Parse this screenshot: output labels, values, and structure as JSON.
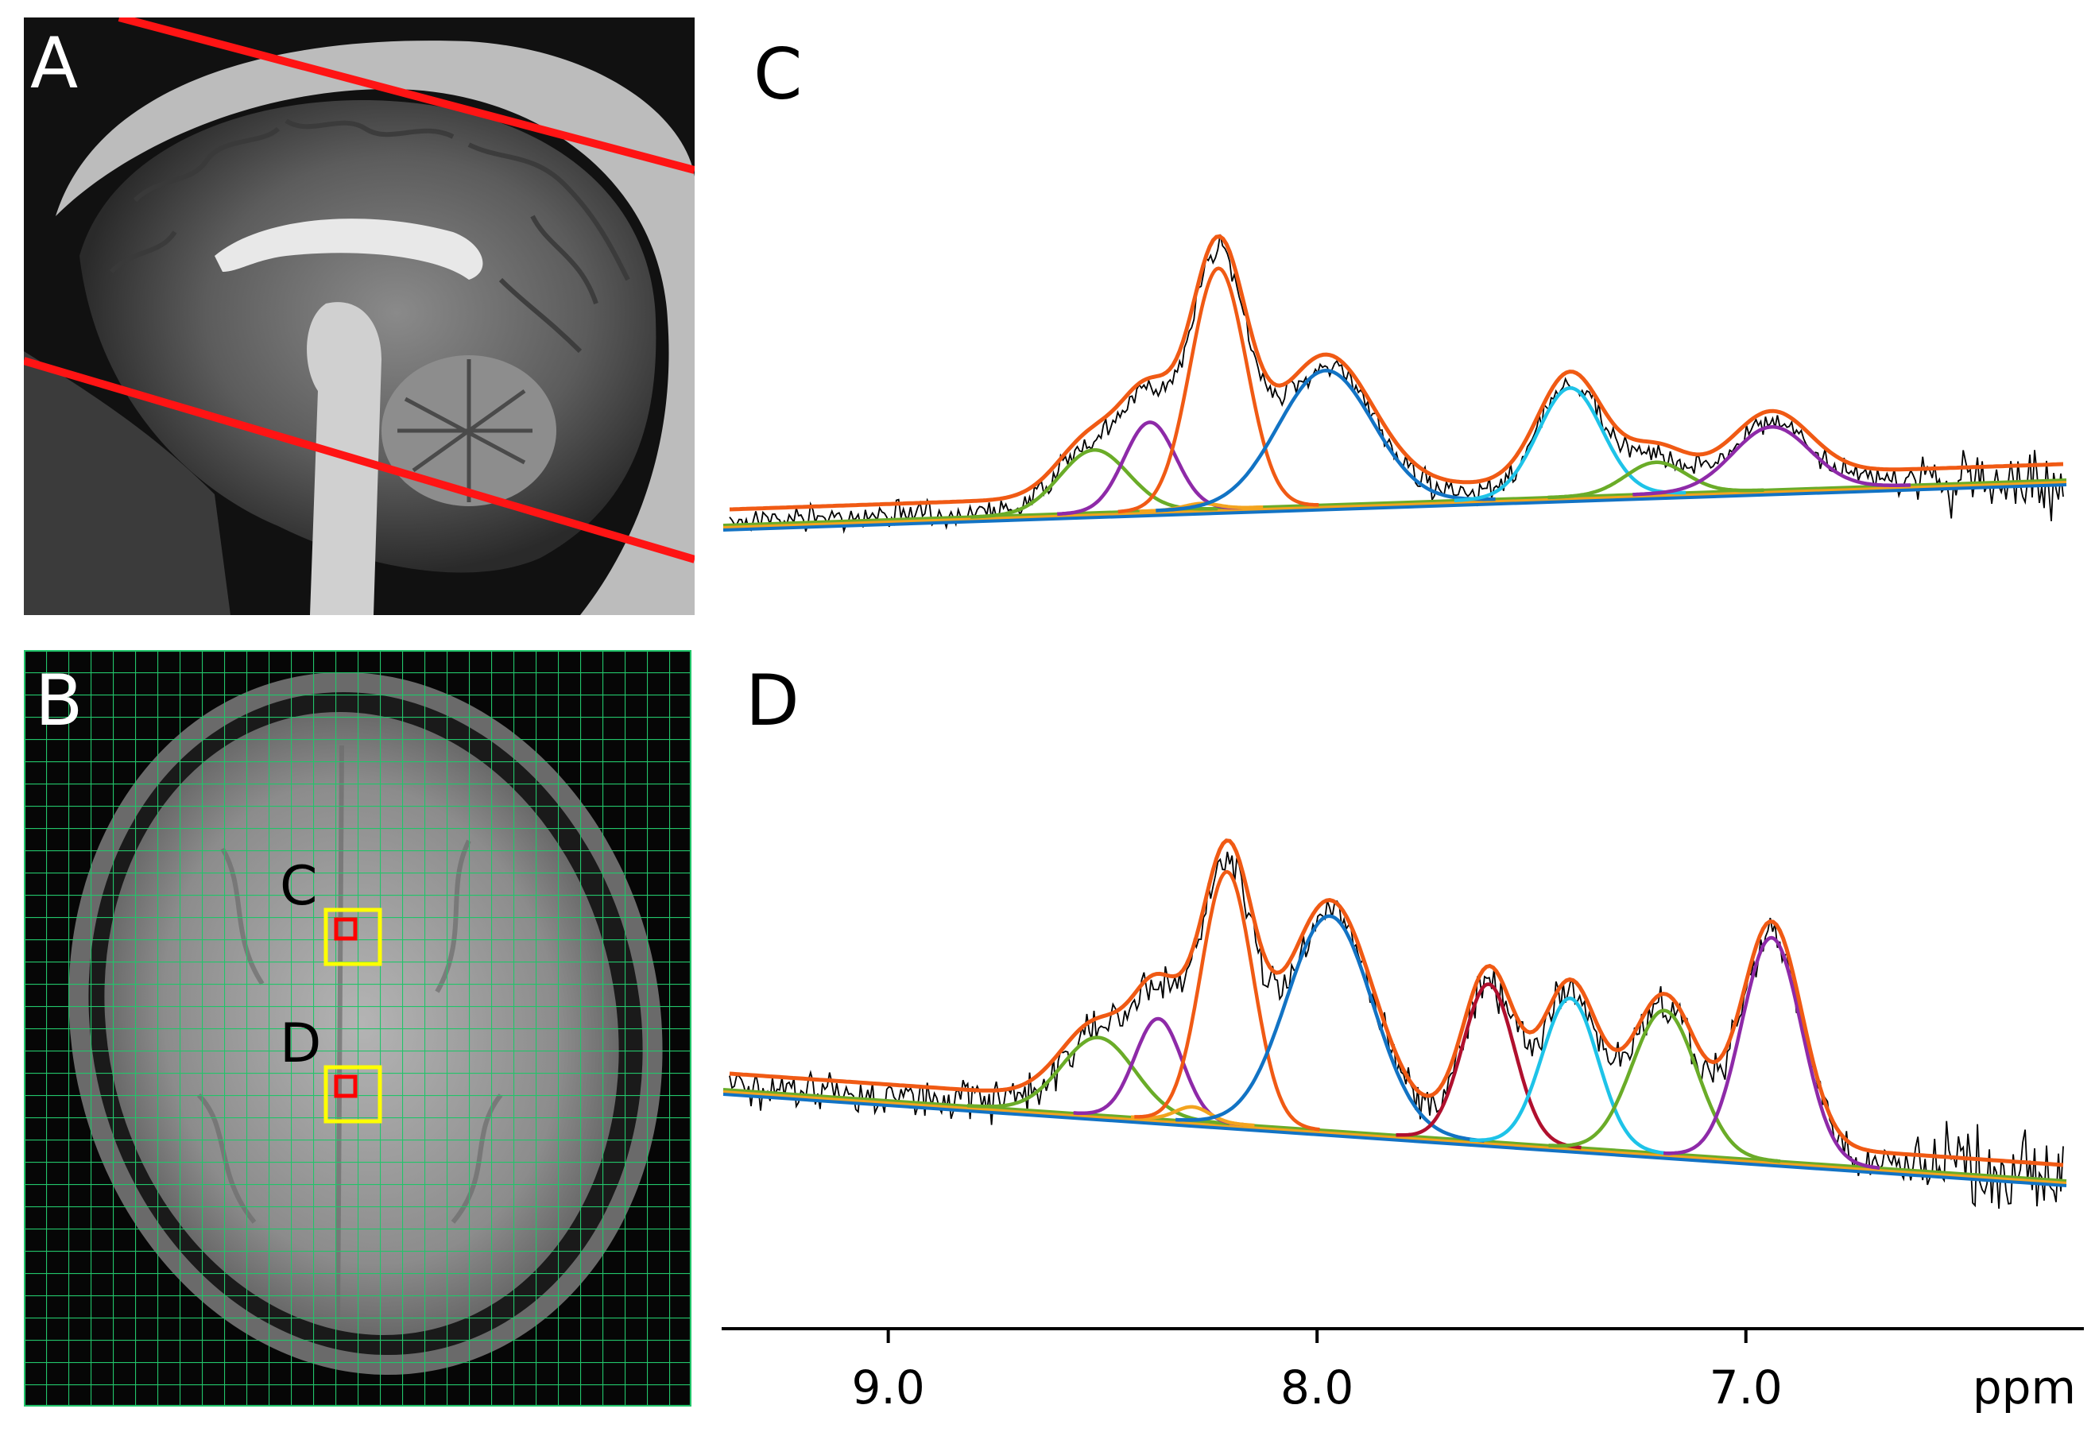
{
  "panels": {
    "a": {
      "label": "A"
    },
    "b": {
      "label": "B",
      "voxel_c": "C",
      "voxel_d": "D"
    },
    "c": {
      "label": "C"
    },
    "d": {
      "label": "D"
    }
  },
  "colors": {
    "fit": "#f05a14",
    "green": "#6aac28",
    "purple": "#8e2aa8",
    "orange_peak": "#f3a41f",
    "blue": "#1273c4",
    "cyan": "#1ec3e8",
    "crimson": "#b0102e",
    "slice_line": "#ff1414",
    "grid": "#22c46a",
    "voxel_outer": "#ffff00",
    "voxel_inner": "#ff0000"
  },
  "chart_data": [
    {
      "type": "line",
      "panel": "C",
      "xlabel": "ppm",
      "xlim": [
        9.37,
        6.26
      ],
      "x_reversed": true,
      "components": [
        {
          "name": "green",
          "center": 8.52,
          "amplitude": 0.22,
          "width": 0.08
        },
        {
          "name": "purple",
          "center": 8.39,
          "amplitude": 0.31,
          "width": 0.06
        },
        {
          "name": "orange_peak",
          "center": 8.27,
          "amplitude": 0.02,
          "width": 0.04
        },
        {
          "name": "orange_main",
          "center": 8.23,
          "amplitude": 0.84,
          "width": 0.065
        },
        {
          "name": "blue",
          "center": 7.98,
          "amplitude": 0.47,
          "width": 0.11
        },
        {
          "name": "cyan",
          "center": 7.41,
          "amplitude": 0.38,
          "width": 0.075
        },
        {
          "name": "green",
          "center": 7.21,
          "amplitude": 0.11,
          "width": 0.07
        },
        {
          "name": "purple",
          "center": 6.94,
          "amplitude": 0.22,
          "width": 0.09
        }
      ]
    },
    {
      "type": "line",
      "panel": "D",
      "xlabel": "ppm",
      "xlim": [
        9.37,
        6.26
      ],
      "x_reversed": true,
      "x_ticks": [
        "9.0",
        "8.0",
        "7.0"
      ],
      "components": [
        {
          "name": "green",
          "center": 8.51,
          "amplitude": 0.27,
          "width": 0.085
        },
        {
          "name": "purple",
          "center": 8.37,
          "amplitude": 0.35,
          "width": 0.055
        },
        {
          "name": "orange_peak",
          "center": 8.29,
          "amplitude": 0.05,
          "width": 0.04
        },
        {
          "name": "orange_main",
          "center": 8.21,
          "amplitude": 0.88,
          "width": 0.06
        },
        {
          "name": "blue",
          "center": 7.97,
          "amplitude": 0.75,
          "width": 0.1
        },
        {
          "name": "crimson",
          "center": 7.6,
          "amplitude": 0.55,
          "width": 0.06
        },
        {
          "name": "cyan",
          "center": 7.41,
          "amplitude": 0.52,
          "width": 0.065
        },
        {
          "name": "green",
          "center": 7.19,
          "amplitude": 0.5,
          "width": 0.075
        },
        {
          "name": "purple",
          "center": 6.94,
          "amplitude": 0.78,
          "width": 0.07
        }
      ]
    }
  ]
}
